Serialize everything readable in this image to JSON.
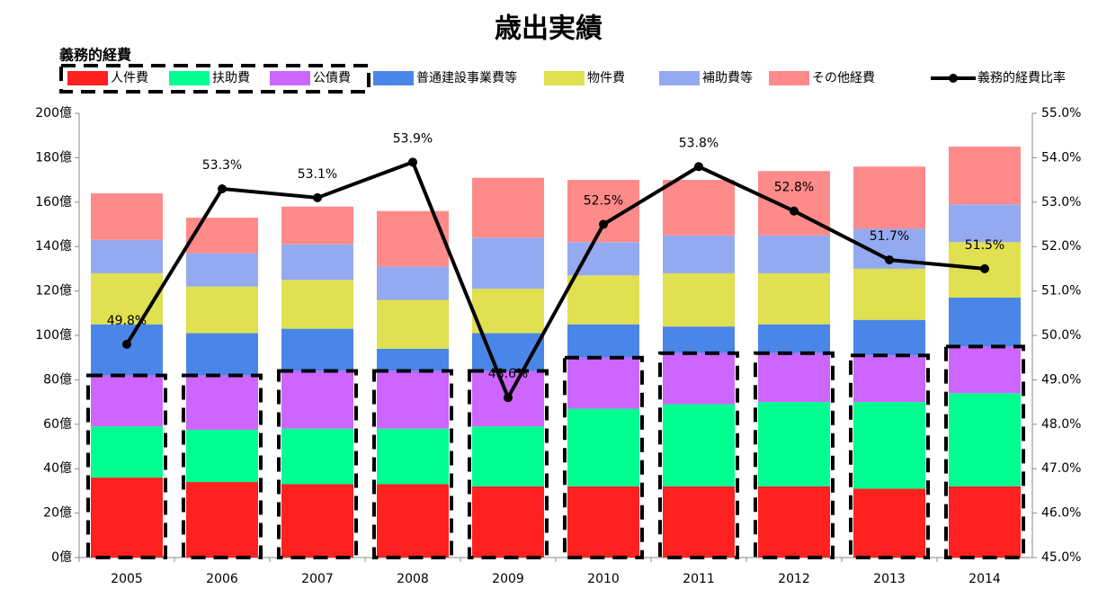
{
  "chart_data": {
    "type": "stacked-bar-line",
    "title": "歳出実績",
    "legend_group_label": "義務的経費",
    "categories": [
      "2005",
      "2006",
      "2007",
      "2008",
      "2009",
      "2010",
      "2011",
      "2012",
      "2013",
      "2014"
    ],
    "series": [
      {
        "name": "人件費",
        "color": "#ff2020",
        "values": [
          36,
          34,
          33,
          33,
          32,
          32,
          32,
          32,
          31,
          32
        ]
      },
      {
        "name": "扶助費",
        "color": "#00ff90",
        "values": [
          23,
          23.5,
          25,
          25,
          27,
          35,
          37,
          38,
          39,
          42
        ]
      },
      {
        "name": "公債費",
        "color": "#cc66ff",
        "values": [
          23,
          24.5,
          26,
          26,
          25,
          23,
          23,
          22,
          21,
          21
        ]
      },
      {
        "name": "普通建設事業費等",
        "color": "#4a86e8",
        "values": [
          23,
          19,
          19,
          10,
          17,
          15,
          12,
          13,
          16,
          22
        ]
      },
      {
        "name": "物件費",
        "color": "#e0e050",
        "values": [
          23,
          21,
          22,
          22,
          20,
          22,
          24,
          23,
          23,
          25
        ]
      },
      {
        "name": "補助費等",
        "color": "#94aaf0",
        "values": [
          15,
          15,
          16,
          15,
          23,
          15,
          17,
          17,
          18,
          17
        ]
      },
      {
        "name": "その他経費",
        "color": "#ff8a8a",
        "values": [
          21,
          16,
          17,
          25,
          27,
          28,
          25,
          29,
          28,
          26
        ]
      },
      {
        "name": "義務的経費比率",
        "color": "#000000",
        "axis": "y2",
        "values": [
          49.8,
          53.3,
          53.1,
          53.9,
          48.6,
          52.5,
          53.8,
          52.8,
          51.7,
          51.5
        ],
        "value_labels": [
          "49.8%",
          "53.3%",
          "53.1%",
          "53.9%",
          "48.6%",
          "52.5%",
          "53.8%",
          "52.8%",
          "51.7%",
          "51.5%"
        ]
      }
    ],
    "ylim": [
      0,
      200
    ],
    "yticks": [
      {
        "value": 0,
        "label": "0億"
      },
      {
        "value": 20,
        "label": "20億"
      },
      {
        "value": 40,
        "label": "40億"
      },
      {
        "value": 60,
        "label": "60億"
      },
      {
        "value": 80,
        "label": "80億"
      },
      {
        "value": 100,
        "label": "100億"
      },
      {
        "value": 120,
        "label": "120億"
      },
      {
        "value": 140,
        "label": "140億"
      },
      {
        "value": 160,
        "label": "160億"
      },
      {
        "value": 180,
        "label": "180億"
      },
      {
        "value": 200,
        "label": "200億"
      }
    ],
    "y2lim": [
      45,
      55
    ],
    "y2ticks": [
      {
        "value": 45,
        "label": "45.0%"
      },
      {
        "value": 46,
        "label": "46.0%"
      },
      {
        "value": 47,
        "label": "47.0%"
      },
      {
        "value": 48,
        "label": "48.0%"
      },
      {
        "value": 49,
        "label": "49.0%"
      },
      {
        "value": 50,
        "label": "50.0%"
      },
      {
        "value": 51,
        "label": "51.0%"
      },
      {
        "value": 52,
        "label": "52.0%"
      },
      {
        "value": 53,
        "label": "53.0%"
      },
      {
        "value": 54,
        "label": "54.0%"
      },
      {
        "value": 55,
        "label": "55.0%"
      }
    ],
    "grouped_series": 3
  }
}
